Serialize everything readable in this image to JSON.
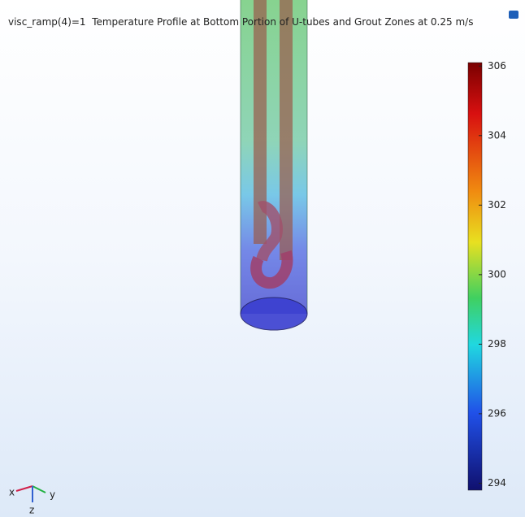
{
  "title": "visc_ramp(4)=1  Temperature Profile at Bottom Portion of U-tubes and Grout Zones at 0.25 m/s",
  "colorbar": {
    "range": [
      293.8,
      306.1
    ],
    "ticks": [
      294,
      296,
      298,
      300,
      302,
      304,
      306
    ]
  },
  "triad": {
    "x": "x",
    "y": "y",
    "z": "z"
  }
}
